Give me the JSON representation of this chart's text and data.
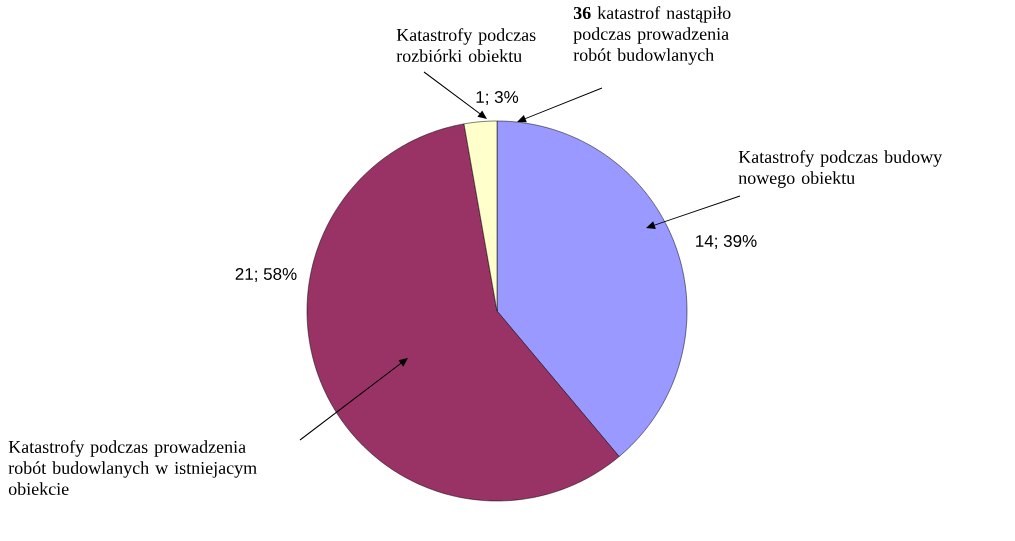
{
  "chart_data": {
    "type": "pie",
    "categories": [
      "Katastrofy podczas budowy nowego obiektu",
      "Katastrofy podczas prowadzenia robót budowlanych w istniejacym obiekcie",
      "Katastrofy podczas rozbiórki obiektu"
    ],
    "values": [
      14,
      21,
      1
    ],
    "colors": [
      "#9999ff",
      "#993366",
      "#ffffcc"
    ],
    "value_labels": [
      "14; 39%",
      "21; 58%",
      "1; 3%"
    ],
    "annotations": [
      "**36** katastrof nastąpiło podczas prowadzenia robót  budowlanych"
    ]
  }
}
